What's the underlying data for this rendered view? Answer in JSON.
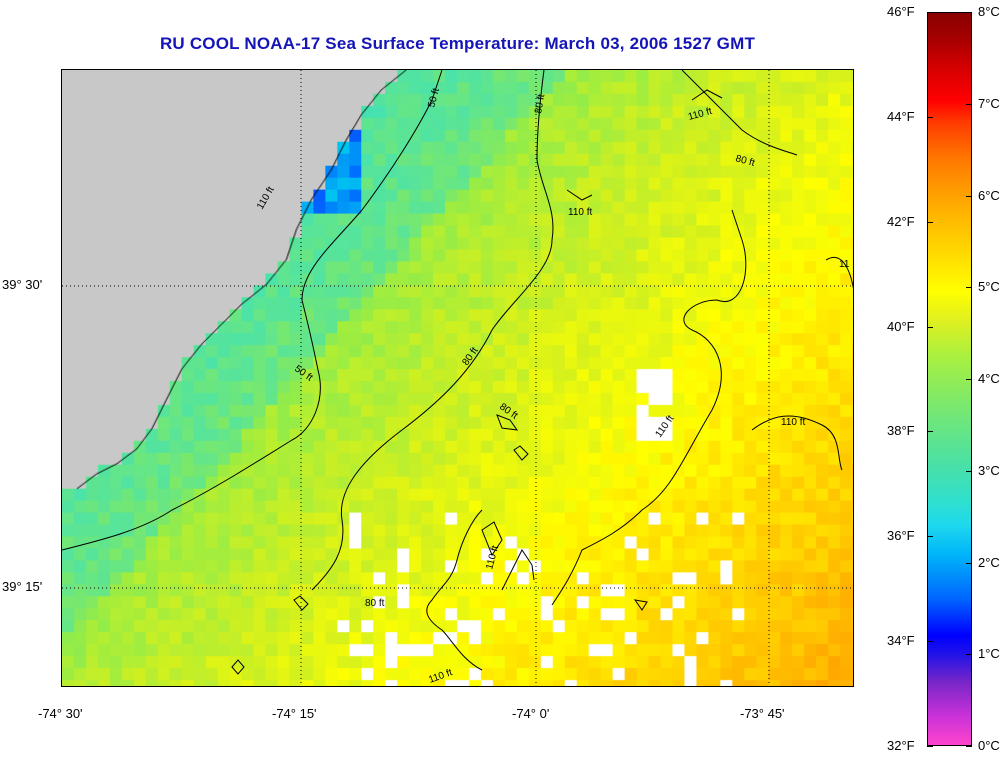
{
  "title": "RU COOL  NOAA-17  Sea Surface Temperature:  March 03, 2006 1527 GMT",
  "map": {
    "lon_labels": [
      "-74° 30'",
      "-74° 15'",
      "-74° 0'",
      "-73° 45'"
    ],
    "lat_labels": [
      "39° 30'",
      "39° 15'"
    ],
    "contour_labels": [
      "50 ft",
      "80 ft",
      "110 ft",
      "110 ft",
      "80 ft",
      "110 ft",
      "11",
      "80 ft",
      "50 ft",
      "80 ft",
      "110 ft",
      "110 ft",
      "110 ft",
      "80 ft",
      "110 ft"
    ],
    "land_color": "#c8c8c8",
    "no_data_color": "#ffffff",
    "contour_color": "#000000"
  },
  "colorbar": {
    "fahrenheit": [
      "46°F",
      "44°F",
      "42°F",
      "40°F",
      "38°F",
      "36°F",
      "34°F",
      "32°F"
    ],
    "celsius": [
      "8°C",
      "7°C",
      "6°C",
      "5°C",
      "4°C",
      "3°C",
      "2°C",
      "1°C",
      "0°C"
    ],
    "range_f": [
      32,
      46
    ],
    "range_c": [
      0,
      8
    ]
  }
}
